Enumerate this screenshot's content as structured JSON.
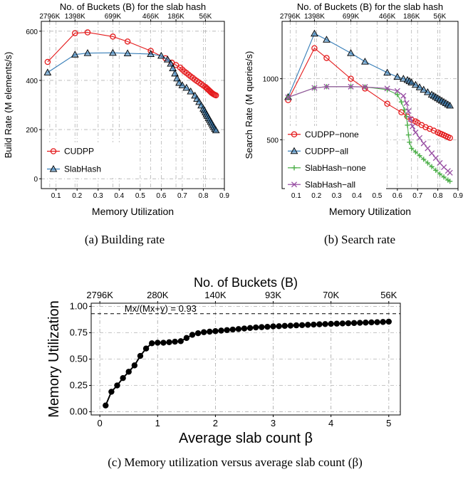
{
  "colors": {
    "cudpp": "#e41a1c",
    "slabhash": "#377eb8",
    "slabhash_none": "#4daf4a",
    "slabhash_all": "#984ea3",
    "grid": "#b3b3b3",
    "black": "#000000"
  },
  "captions": {
    "a": "(a) Building rate",
    "b": "(b) Search rate",
    "c": "(c) Memory utilization versus average slab count (β)"
  },
  "chart_data": [
    {
      "id": "a",
      "type": "line",
      "title": "No. of Buckets (B) for the slab hash",
      "xlabel": "Memory Utilization",
      "ylabel": "Build Rate (M elements/s)",
      "xlim": [
        0.03,
        0.9
      ],
      "ylim": [
        -40,
        640
      ],
      "xticks": [
        0.1,
        0.2,
        0.3,
        0.4,
        0.5,
        0.6,
        0.7,
        0.8,
        0.9
      ],
      "xtick_labels": [
        "0.1",
        "0.2",
        "0.3",
        "0.4",
        "0.5",
        "0.6",
        "0.7",
        "0.8",
        "0.9"
      ],
      "yticks": [
        0,
        200,
        400,
        600
      ],
      "ytick_labels": [
        "0",
        "200",
        "400",
        "600"
      ],
      "top_ticks": [
        0.07,
        0.19,
        0.37,
        0.55,
        0.67,
        0.81
      ],
      "top_tick_labels": [
        "2796K",
        "1398K",
        "699K",
        "466K",
        "186K",
        "56K"
      ],
      "legend_position": "bottom-left",
      "series": [
        {
          "name": "CUDPP",
          "marker": "circle",
          "color_key": "cudpp",
          "x": [
            0.06,
            0.19,
            0.25,
            0.37,
            0.44,
            0.55,
            0.62,
            0.65,
            0.67,
            0.69,
            0.7,
            0.71,
            0.72,
            0.73,
            0.74,
            0.75,
            0.76,
            0.77,
            0.78,
            0.79,
            0.8,
            0.81,
            0.815,
            0.82,
            0.825,
            0.83,
            0.835,
            0.84,
            0.845,
            0.85,
            0.855,
            0.86
          ],
          "y": [
            475,
            592,
            595,
            578,
            558,
            520,
            490,
            472,
            462,
            452,
            444,
            436,
            430,
            423,
            416,
            410,
            403,
            397,
            391,
            385,
            379,
            373,
            369,
            365,
            361,
            357,
            353,
            349,
            346,
            343,
            341,
            339
          ]
        },
        {
          "name": "SlabHash",
          "marker": "triangle",
          "color_key": "slabhash",
          "x": [
            0.06,
            0.19,
            0.25,
            0.37,
            0.44,
            0.55,
            0.6,
            0.63,
            0.645,
            0.655,
            0.665,
            0.675,
            0.685,
            0.7,
            0.72,
            0.74,
            0.76,
            0.77,
            0.78,
            0.79,
            0.8,
            0.805,
            0.81,
            0.815,
            0.82,
            0.825,
            0.83,
            0.835,
            0.84,
            0.845,
            0.85,
            0.855,
            0.86
          ],
          "y": [
            432,
            505,
            511,
            512,
            510,
            507,
            500,
            485,
            468,
            449,
            428,
            408,
            390,
            380,
            370,
            355,
            338,
            325,
            312,
            298,
            285,
            278,
            270,
            262,
            255,
            247,
            240,
            232,
            225,
            217,
            210,
            203,
            197
          ]
        }
      ]
    },
    {
      "id": "b",
      "type": "line",
      "title": "No. of Buckets (B) for the slab hash",
      "xlabel": "Memory Utilization",
      "ylabel": "Search Rate (M queries/s)",
      "xlim": [
        0.03,
        0.9
      ],
      "ylim": [
        100,
        1470
      ],
      "xticks": [
        0.1,
        0.2,
        0.3,
        0.4,
        0.5,
        0.6,
        0.7,
        0.8,
        0.9
      ],
      "xtick_labels": [
        "0.1",
        "0.2",
        "0.3",
        "0.4",
        "0.5",
        "0.6",
        "0.7",
        "0.8",
        "0.9"
      ],
      "yticks": [
        500,
        1000
      ],
      "ytick_labels": [
        "500",
        "1000"
      ],
      "top_ticks": [
        0.07,
        0.19,
        0.37,
        0.55,
        0.67,
        0.81
      ],
      "top_tick_labels": [
        "2796K",
        "1398K",
        "699K",
        "466K",
        "186K",
        "56K"
      ],
      "legend_position": "bottom-left",
      "series": [
        {
          "name": "CUDPP−none",
          "marker": "circle",
          "color_key": "cudpp",
          "x": [
            0.06,
            0.19,
            0.25,
            0.37,
            0.44,
            0.55,
            0.62,
            0.65,
            0.67,
            0.69,
            0.7,
            0.72,
            0.74,
            0.76,
            0.78,
            0.8,
            0.81,
            0.82,
            0.83,
            0.84,
            0.85,
            0.86
          ],
          "y": [
            825,
            1250,
            1170,
            1000,
            920,
            795,
            725,
            690,
            665,
            650,
            640,
            620,
            603,
            590,
            575,
            560,
            552,
            545,
            538,
            530,
            523,
            515
          ]
        },
        {
          "name": "CUDPP−all",
          "marker": "triangle",
          "color_key": "slabhash",
          "x": [
            0.06,
            0.19,
            0.25,
            0.37,
            0.44,
            0.55,
            0.6,
            0.63,
            0.65,
            0.66,
            0.67,
            0.69,
            0.71,
            0.73,
            0.75,
            0.77,
            0.78,
            0.79,
            0.8,
            0.81,
            0.82,
            0.83,
            0.84,
            0.85,
            0.86
          ],
          "y": [
            850,
            1370,
            1320,
            1210,
            1140,
            1050,
            1015,
            1000,
            990,
            980,
            970,
            950,
            930,
            910,
            890,
            870,
            860,
            850,
            840,
            830,
            820,
            810,
            800,
            790,
            780
          ]
        },
        {
          "name": "SlabHash−none",
          "marker": "plus",
          "color_key": "slabhash_none",
          "x": [
            0.06,
            0.19,
            0.25,
            0.37,
            0.44,
            0.55,
            0.6,
            0.62,
            0.635,
            0.645,
            0.65,
            0.655,
            0.66,
            0.67,
            0.69,
            0.71,
            0.73,
            0.75,
            0.77,
            0.79,
            0.81,
            0.83,
            0.85,
            0.86
          ],
          "y": [
            848,
            925,
            935,
            935,
            933,
            910,
            870,
            810,
            745,
            690,
            620,
            540,
            480,
            430,
            400,
            370,
            340,
            310,
            280,
            250,
            220,
            195,
            170,
            160
          ]
        },
        {
          "name": "SlabHash−all",
          "marker": "cross",
          "color_key": "slabhash_all",
          "x": [
            0.06,
            0.19,
            0.25,
            0.37,
            0.44,
            0.55,
            0.6,
            0.63,
            0.645,
            0.655,
            0.665,
            0.675,
            0.69,
            0.71,
            0.73,
            0.75,
            0.77,
            0.79,
            0.81,
            0.83,
            0.85,
            0.86
          ],
          "y": [
            848,
            925,
            935,
            935,
            933,
            920,
            900,
            860,
            800,
            735,
            670,
            610,
            560,
            515,
            470,
            430,
            390,
            350,
            310,
            275,
            245,
            230
          ]
        }
      ]
    },
    {
      "id": "c",
      "type": "scatter",
      "title": "No. of Buckets (B)",
      "xlabel": "Average slab count β",
      "ylabel": "Memory Utilization",
      "xlim": [
        -0.15,
        5.2
      ],
      "ylim": [
        -0.03,
        1.03
      ],
      "xticks": [
        0,
        1,
        2,
        3,
        4,
        5
      ],
      "xtick_labels": [
        "0",
        "1",
        "2",
        "3",
        "4",
        "5"
      ],
      "yticks": [
        0,
        0.25,
        0.5,
        0.75,
        1.0
      ],
      "ytick_labels": [
        "0.00",
        "0.25",
        "0.50",
        "0.75",
        "1.00"
      ],
      "top_ticks": [
        0,
        1,
        2,
        3,
        4,
        5
      ],
      "top_tick_labels": [
        "2796K",
        "280K",
        "140K",
        "93K",
        "70K",
        "56K"
      ],
      "reference_line": {
        "y": 0.93,
        "label": "Mx/(Mx+y) = 0.93"
      },
      "series": [
        {
          "name": "",
          "marker": "dot",
          "color_key": "black",
          "x": [
            0.1,
            0.2,
            0.3,
            0.4,
            0.5,
            0.6,
            0.7,
            0.8,
            0.9,
            1.0,
            1.1,
            1.2,
            1.3,
            1.4,
            1.5,
            1.6,
            1.7,
            1.8,
            1.9,
            2.0,
            2.1,
            2.2,
            2.3,
            2.4,
            2.5,
            2.6,
            2.7,
            2.8,
            2.9,
            3.0,
            3.1,
            3.2,
            3.3,
            3.4,
            3.5,
            3.6,
            3.7,
            3.8,
            3.9,
            4.0,
            4.1,
            4.2,
            4.3,
            4.4,
            4.5,
            4.6,
            4.7,
            4.8,
            4.9,
            5.0
          ],
          "y": [
            0.06,
            0.19,
            0.25,
            0.32,
            0.38,
            0.44,
            0.53,
            0.6,
            0.65,
            0.655,
            0.655,
            0.66,
            0.665,
            0.67,
            0.7,
            0.73,
            0.745,
            0.755,
            0.76,
            0.765,
            0.77,
            0.775,
            0.78,
            0.785,
            0.79,
            0.795,
            0.8,
            0.803,
            0.806,
            0.81,
            0.812,
            0.815,
            0.817,
            0.82,
            0.822,
            0.825,
            0.827,
            0.83,
            0.832,
            0.834,
            0.836,
            0.838,
            0.84,
            0.842,
            0.844,
            0.846,
            0.848,
            0.85,
            0.852,
            0.855
          ]
        }
      ]
    }
  ]
}
